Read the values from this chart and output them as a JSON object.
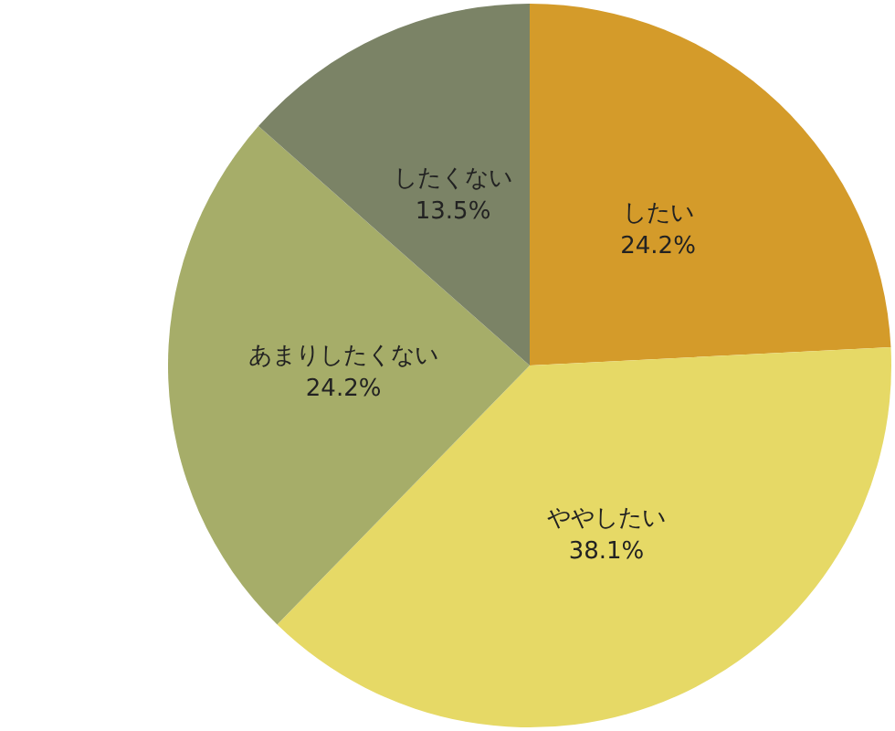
{
  "chart_data": {
    "type": "pie",
    "categories": [
      "したい",
      "ややしたい",
      "あまりしたくない",
      "したくない"
    ],
    "values": [
      24.2,
      38.1,
      24.2,
      13.5
    ],
    "value_labels": [
      "24.2%",
      "38.1%",
      "24.2%",
      "13.5%"
    ],
    "colors": [
      "#d49b2a",
      "#e6d966",
      "#a6ad69",
      "#7b8366"
    ],
    "legend": false
  }
}
